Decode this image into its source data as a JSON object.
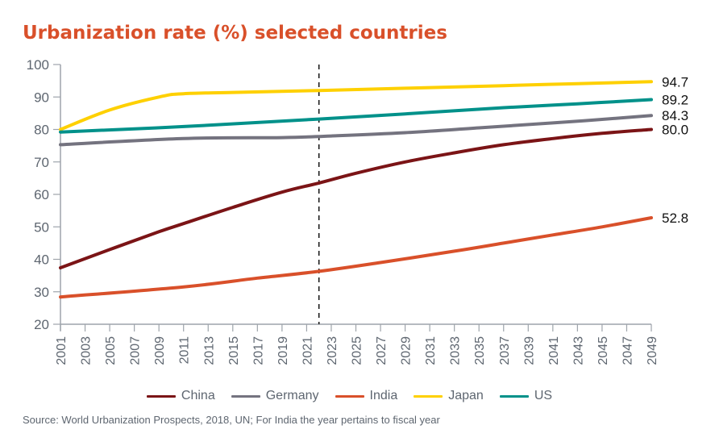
{
  "chart_data": {
    "type": "line",
    "title": "Urbanization rate (%) selected countries",
    "xlabel": "",
    "ylabel": "",
    "ylim": [
      20,
      100
    ],
    "xlim": [
      2001,
      2049
    ],
    "yticks": [
      "20",
      "30",
      "40",
      "50",
      "60",
      "70",
      "80",
      "90",
      "100"
    ],
    "xticks": [
      "2001",
      "2003",
      "2005",
      "2007",
      "2009",
      "2011",
      "2013",
      "2015",
      "2017",
      "2019",
      "2021",
      "2023",
      "2025",
      "2027",
      "2029",
      "2031",
      "2033",
      "2035",
      "2037",
      "2039",
      "2041",
      "2043",
      "2045",
      "2047",
      "2049"
    ],
    "grid": false,
    "legend_position": "bottom",
    "reference_line": {
      "x": 2022,
      "style": "dashed"
    },
    "series": [
      {
        "name": "China",
        "color": "#7b1416",
        "end_label": "80.0",
        "points": [
          [
            2001,
            37.4
          ],
          [
            2005,
            43.0
          ],
          [
            2009,
            48.5
          ],
          [
            2011,
            51.0
          ],
          [
            2015,
            56.0
          ],
          [
            2019,
            60.7
          ],
          [
            2022,
            63.5
          ],
          [
            2025,
            66.5
          ],
          [
            2029,
            70.0
          ],
          [
            2033,
            72.8
          ],
          [
            2037,
            75.3
          ],
          [
            2041,
            77.2
          ],
          [
            2045,
            78.8
          ],
          [
            2049,
            80.0
          ]
        ]
      },
      {
        "name": "Germany",
        "color": "#74737f",
        "end_label": "84.3",
        "points": [
          [
            2001,
            75.3
          ],
          [
            2011,
            77.2
          ],
          [
            2019,
            77.5
          ],
          [
            2023,
            78.0
          ],
          [
            2029,
            79.0
          ],
          [
            2035,
            80.5
          ],
          [
            2041,
            82.0
          ],
          [
            2045,
            83.1
          ],
          [
            2049,
            84.3
          ]
        ]
      },
      {
        "name": "India",
        "color": "#d9502a",
        "end_label": "52.8",
        "points": [
          [
            2001,
            28.4
          ],
          [
            2011,
            31.5
          ],
          [
            2017,
            34.2
          ],
          [
            2022,
            36.3
          ],
          [
            2027,
            39.0
          ],
          [
            2033,
            42.5
          ],
          [
            2037,
            45.0
          ],
          [
            2041,
            47.5
          ],
          [
            2045,
            50.0
          ],
          [
            2049,
            52.8
          ]
        ]
      },
      {
        "name": "Japan",
        "color": "#fed000",
        "end_label": "94.7",
        "points": [
          [
            2001,
            80.0
          ],
          [
            2005,
            86.0
          ],
          [
            2009,
            90.0
          ],
          [
            2011,
            91.0
          ],
          [
            2015,
            91.4
          ],
          [
            2022,
            92.0
          ],
          [
            2029,
            92.7
          ],
          [
            2037,
            93.5
          ],
          [
            2043,
            94.1
          ],
          [
            2049,
            94.7
          ]
        ]
      },
      {
        "name": "US",
        "color": "#00918a",
        "end_label": "89.2",
        "points": [
          [
            2001,
            79.2
          ],
          [
            2011,
            80.9
          ],
          [
            2022,
            83.2
          ],
          [
            2029,
            84.8
          ],
          [
            2037,
            86.7
          ],
          [
            2043,
            87.9
          ],
          [
            2049,
            89.2
          ]
        ]
      }
    ]
  },
  "source": "Source: World Urbanization Prospects, 2018, UN; For India the year pertains to fiscal year"
}
